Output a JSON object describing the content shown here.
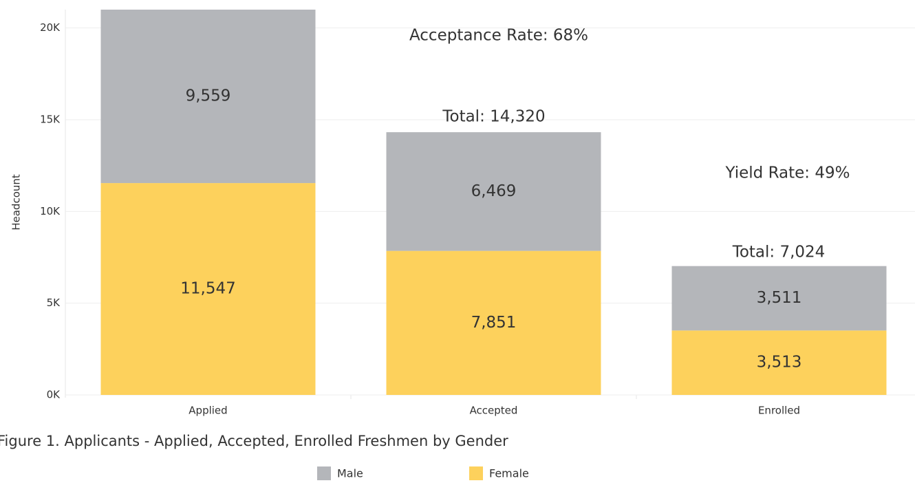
{
  "chart_data": {
    "type": "stacked_bar",
    "title": "Figure 1. Applicants - Applied, Accepted, Enrolled Freshmen by Gender",
    "y_label": "Headcount",
    "categories": [
      "Applied",
      "Accepted",
      "Enrolled"
    ],
    "series": [
      {
        "name": "Female",
        "color": "#fdd15c",
        "values": [
          11547,
          7851,
          3513
        ],
        "value_labels": [
          "11,547",
          "7,851",
          "3,513"
        ]
      },
      {
        "name": "Male",
        "color": "#b4b6ba",
        "values": [
          9559,
          6469,
          3511
        ],
        "value_labels": [
          "9,559",
          "6,469",
          "3,511"
        ]
      }
    ],
    "legend_order": [
      "Male",
      "Female"
    ],
    "ylim": [
      0,
      21000
    ],
    "yticks": [
      {
        "value": 0,
        "label": "0K"
      },
      {
        "value": 5000,
        "label": "5K"
      },
      {
        "value": 10000,
        "label": "10K"
      },
      {
        "value": 15000,
        "label": "15K"
      },
      {
        "value": 20000,
        "label": "20K"
      }
    ],
    "grid": true,
    "annotations": [
      "Acceptance Rate: 68%",
      "Total: 14,320",
      "Yield Rate: 49%",
      "Total: 7,024"
    ]
  }
}
